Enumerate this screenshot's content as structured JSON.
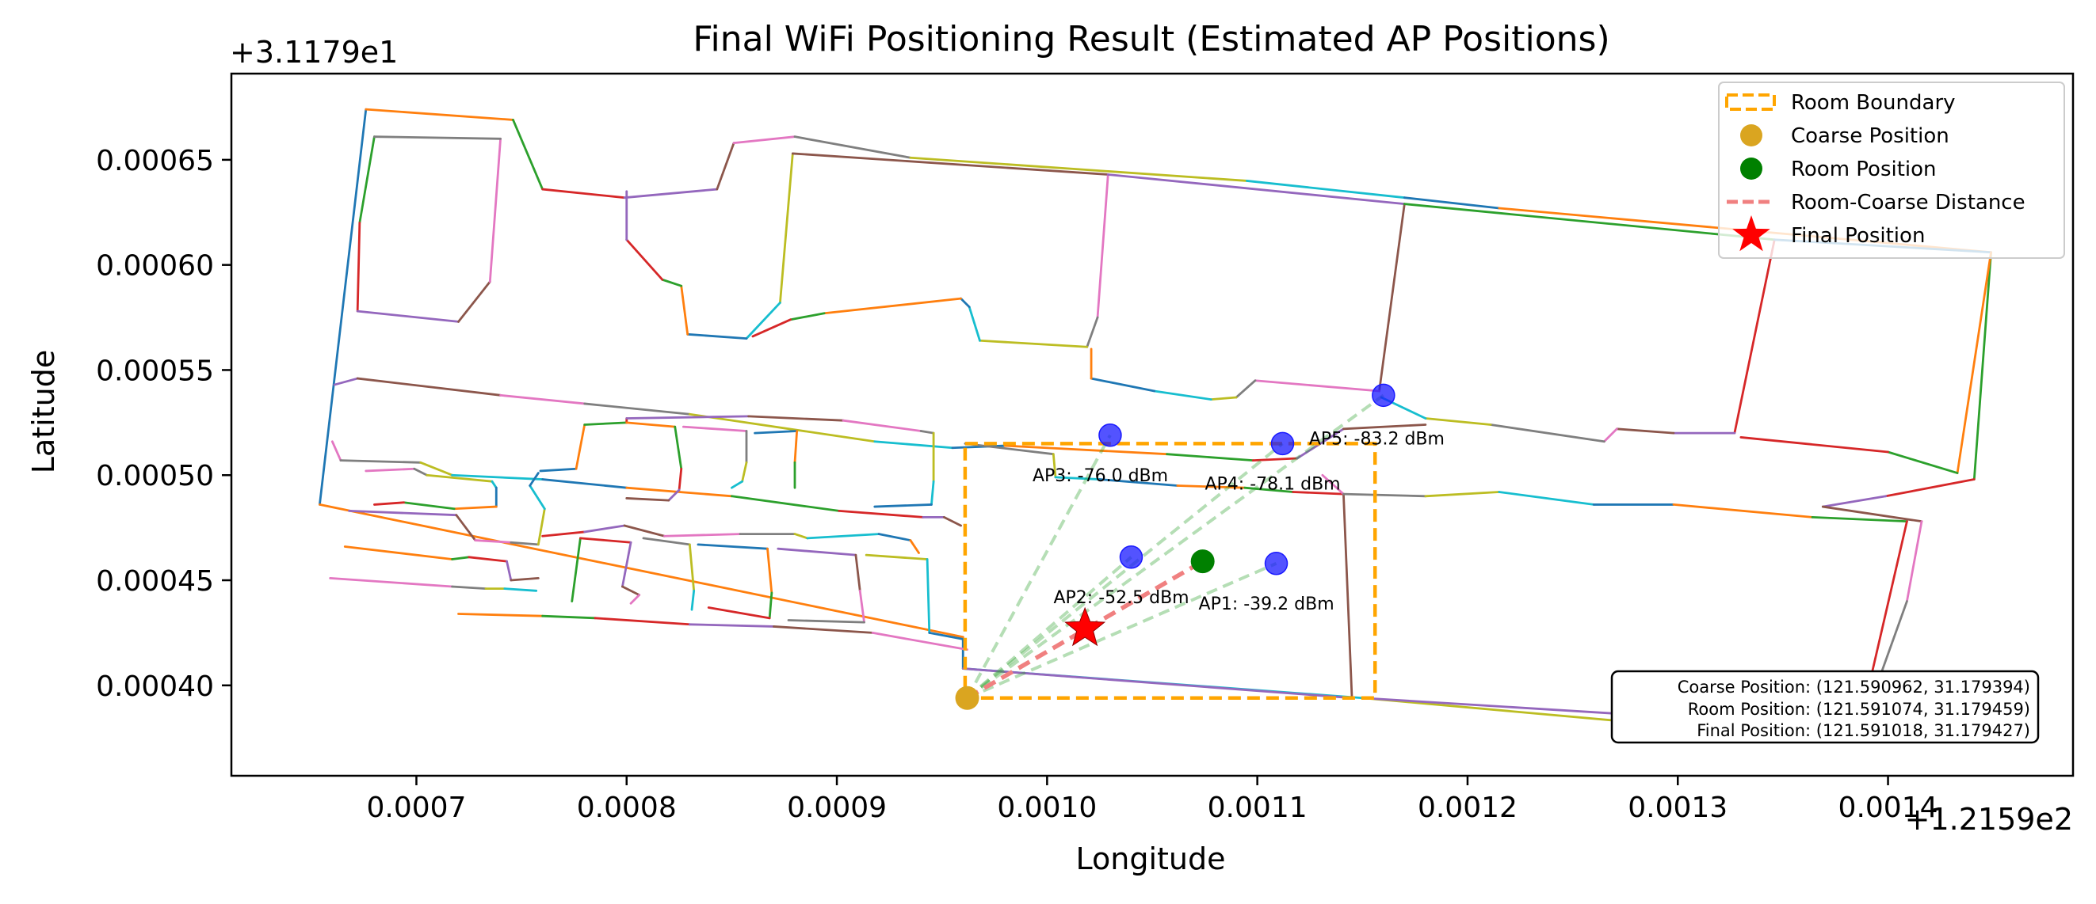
{
  "chart_data": {
    "type": "scatter",
    "title": "Final WiFi Positioning Result (Estimated AP Positions)",
    "xlabel": "Longitude",
    "ylabel": "Latitude",
    "x_offset_label": "+1.2159e2",
    "y_offset_label": "+3.1179e1",
    "xlim": [
      0.000612,
      0.001488
    ],
    "ylim": [
      0.000357,
      0.000691
    ],
    "x_ticks": [
      0.0007,
      0.0008,
      0.0009,
      0.001,
      0.0011,
      0.0012,
      0.0013,
      0.0014
    ],
    "x_tick_labels": [
      "0.0007",
      "0.0008",
      "0.0009",
      "0.0010",
      "0.0011",
      "0.0012",
      "0.0013",
      "0.0014"
    ],
    "y_ticks": [
      0.0004,
      0.00045,
      0.0005,
      0.00055,
      0.0006,
      0.00065
    ],
    "y_tick_labels": [
      "0.00040",
      "0.00045",
      "0.00050",
      "0.00055",
      "0.00060",
      "0.00065"
    ],
    "grid": false,
    "legend_position": "top-right",
    "legend": [
      {
        "label": "Room Boundary",
        "marker": "dashed-rect",
        "color": "#FFA500"
      },
      {
        "label": "Coarse Position",
        "marker": "circle",
        "color": "#DAA520"
      },
      {
        "label": "Room Position",
        "marker": "circle",
        "color": "#008000"
      },
      {
        "label": "Room-Coarse Distance",
        "marker": "dashed-line",
        "color": "#F08080"
      },
      {
        "label": "Final Position",
        "marker": "star",
        "color": "#FF0000"
      }
    ],
    "floorplan_colors": [
      "#1f77b4",
      "#ff7f0e",
      "#2ca02c",
      "#d62728",
      "#9467bd",
      "#8c564b",
      "#e377c2",
      "#7f7f7f",
      "#bcbd22",
      "#17becf"
    ],
    "floorplan_polygons": [
      [
        [
          0.000654,
          0.000486
        ],
        [
          0.000676,
          0.000674
        ],
        [
          0.000746,
          0.000669
        ],
        [
          0.00076,
          0.000636
        ],
        [
          0.000799,
          0.000632
        ],
        [
          0.000843,
          0.000636
        ],
        [
          0.000851,
          0.000658
        ],
        [
          0.00088,
          0.000661
        ],
        [
          0.000935,
          0.000651
        ],
        [
          0.001095,
          0.00064
        ],
        [
          0.00117,
          0.000632
        ],
        [
          0.001215,
          0.000627
        ],
        [
          0.001449,
          0.000606
        ],
        [
          0.001441,
          0.000498
        ],
        [
          0.001399,
          0.00049
        ],
        [
          0.001369,
          0.000485
        ],
        [
          0.001416,
          0.000478
        ],
        [
          0.001409,
          0.00044
        ],
        [
          0.001385,
          0.000373
        ],
        [
          0.00115,
          0.000394
        ],
        [
          0.00096,
          0.000408
        ],
        [
          0.00096,
          0.000423
        ],
        [
          0.000654,
          0.000486
        ]
      ],
      [
        [
          0.00068,
          0.000661
        ],
        [
          0.000673,
          0.00062
        ],
        [
          0.000672,
          0.000578
        ],
        [
          0.00072,
          0.000573
        ],
        [
          0.000735,
          0.000592
        ],
        [
          0.00074,
          0.00066
        ],
        [
          0.00068,
          0.000661
        ]
      ],
      [
        [
          0.000879,
          0.000653
        ],
        [
          0.000873,
          0.000582
        ],
        [
          0.000857,
          0.000565
        ],
        [
          0.000829,
          0.000567
        ],
        [
          0.000826,
          0.00059
        ],
        [
          0.000817,
          0.000593
        ],
        [
          0.0008,
          0.000612
        ],
        [
          0.0008,
          0.000635
        ]
      ],
      [
        [
          0.000879,
          0.000653
        ],
        [
          0.001029,
          0.000643
        ],
        [
          0.001024,
          0.000575
        ],
        [
          0.001019,
          0.000561
        ],
        [
          0.000968,
          0.000564
        ],
        [
          0.000963,
          0.00058
        ],
        [
          0.000959,
          0.000584
        ],
        [
          0.000894,
          0.000577
        ],
        [
          0.000878,
          0.000574
        ],
        [
          0.00086,
          0.000566
        ]
      ],
      [
        [
          0.001029,
          0.000643
        ],
        [
          0.00117,
          0.000629
        ],
        [
          0.001158,
          0.00054
        ],
        [
          0.001099,
          0.000545
        ],
        [
          0.00109,
          0.000537
        ],
        [
          0.001078,
          0.000536
        ],
        [
          0.001051,
          0.00054
        ],
        [
          0.001021,
          0.000546
        ],
        [
          0.001021,
          0.00056
        ]
      ],
      [
        [
          0.00117,
          0.000629
        ],
        [
          0.001346,
          0.000612
        ],
        [
          0.001327,
          0.00052
        ],
        [
          0.001298,
          0.00052
        ],
        [
          0.001271,
          0.000522
        ],
        [
          0.001265,
          0.000516
        ],
        [
          0.001211,
          0.000524
        ],
        [
          0.00118,
          0.000527
        ],
        [
          0.001159,
          0.000537
        ]
      ],
      [
        [
          0.001346,
          0.000612
        ],
        [
          0.001449,
          0.000606
        ],
        [
          0.001433,
          0.000501
        ],
        [
          0.0014,
          0.000511
        ],
        [
          0.00133,
          0.000518
        ]
      ],
      [
        [
          0.000661,
          0.000543
        ],
        [
          0.000672,
          0.000546
        ],
        [
          0.00074,
          0.000538
        ],
        [
          0.00078,
          0.000534
        ],
        [
          0.00083,
          0.000529
        ],
        [
          0.000918,
          0.000516
        ],
        [
          0.000955,
          0.000513
        ],
        [
          0.00098,
          0.000514
        ],
        [
          0.001057,
          0.00051
        ],
        [
          0.001098,
          0.000507
        ],
        [
          0.001119,
          0.000508
        ],
        [
          0.001141,
          0.000522
        ],
        [
          0.00118,
          0.000524
        ]
      ],
      [
        [
          0.00066,
          0.000516
        ],
        [
          0.000664,
          0.000507
        ],
        [
          0.000702,
          0.000506
        ],
        [
          0.000717,
          0.0005
        ],
        [
          0.00076,
          0.000498
        ],
        [
          0.0008,
          0.000494
        ],
        [
          0.00085,
          0.00049
        ],
        [
          0.000901,
          0.000483
        ],
        [
          0.000941,
          0.00048
        ],
        [
          0.000951,
          0.00048
        ],
        [
          0.000959,
          0.000476
        ]
      ],
      [
        [
          0.000676,
          0.000502
        ],
        [
          0.000699,
          0.000503
        ],
        [
          0.000705,
          0.0005
        ],
        [
          0.000736,
          0.000497
        ],
        [
          0.000738,
          0.000494
        ],
        [
          0.000738,
          0.000485
        ],
        [
          0.000718,
          0.000484
        ],
        [
          0.000694,
          0.000487
        ],
        [
          0.00068,
          0.000486
        ]
      ],
      [
        [
          0.000668,
          0.000483
        ],
        [
          0.000719,
          0.000481
        ],
        [
          0.000728,
          0.000469
        ],
        [
          0.000745,
          0.000468
        ],
        [
          0.000758,
          0.000467
        ],
        [
          0.000761,
          0.000484
        ],
        [
          0.000754,
          0.000495
        ],
        [
          0.000758,
          0.000501
        ]
      ],
      [
        [
          0.000666,
          0.000466
        ],
        [
          0.000717,
          0.00046
        ],
        [
          0.000725,
          0.000461
        ],
        [
          0.000743,
          0.000459
        ],
        [
          0.000745,
          0.00045
        ],
        [
          0.000758,
          0.000451
        ]
      ],
      [
        [
          0.000659,
          0.000451
        ],
        [
          0.000717,
          0.000447
        ],
        [
          0.000733,
          0.000446
        ],
        [
          0.000742,
          0.000446
        ],
        [
          0.000757,
          0.000445
        ]
      ],
      [
        [
          0.000759,
          0.000502
        ],
        [
          0.000776,
          0.000503
        ],
        [
          0.00078,
          0.000524
        ],
        [
          0.0008,
          0.000525
        ],
        [
          0.0008,
          0.000527
        ],
        [
          0.000858,
          0.000528
        ],
        [
          0.000903,
          0.000526
        ],
        [
          0.00094,
          0.000521
        ],
        [
          0.000946,
          0.00052
        ],
        [
          0.000946,
          0.000497
        ],
        [
          0.000945,
          0.000486
        ],
        [
          0.000918,
          0.000485
        ]
      ],
      [
        [
          0.0008,
          0.000525
        ],
        [
          0.000823,
          0.000523
        ],
        [
          0.000826,
          0.000503
        ],
        [
          0.000825,
          0.000493
        ],
        [
          0.00082,
          0.000488
        ],
        [
          0.0008,
          0.000489
        ]
      ],
      [
        [
          0.000827,
          0.000523
        ],
        [
          0.000857,
          0.000521
        ],
        [
          0.000857,
          0.000506
        ],
        [
          0.000855,
          0.000497
        ],
        [
          0.00085,
          0.000494
        ]
      ],
      [
        [
          0.000861,
          0.00052
        ],
        [
          0.000881,
          0.000521
        ],
        [
          0.00088,
          0.000506
        ],
        [
          0.00088,
          0.000494
        ]
      ],
      [
        [
          0.00076,
          0.000471
        ],
        [
          0.00078,
          0.000473
        ],
        [
          0.000799,
          0.000476
        ],
        [
          0.000818,
          0.000471
        ],
        [
          0.000854,
          0.000472
        ],
        [
          0.00088,
          0.000472
        ],
        [
          0.000886,
          0.00047
        ],
        [
          0.00092,
          0.000472
        ],
        [
          0.000935,
          0.000469
        ],
        [
          0.000939,
          0.000463
        ]
      ],
      [
        [
          0.000774,
          0.00044
        ],
        [
          0.000778,
          0.00047
        ],
        [
          0.000802,
          0.000468
        ],
        [
          0.000798,
          0.000447
        ],
        [
          0.000806,
          0.000443
        ],
        [
          0.000802,
          0.000439
        ]
      ],
      [
        [
          0.000808,
          0.00047
        ],
        [
          0.00083,
          0.000467
        ],
        [
          0.000832,
          0.000445
        ],
        [
          0.000831,
          0.000436
        ]
      ],
      [
        [
          0.000834,
          0.000467
        ],
        [
          0.000867,
          0.000465
        ],
        [
          0.000869,
          0.000444
        ],
        [
          0.000868,
          0.000432
        ],
        [
          0.000839,
          0.000437
        ]
      ],
      [
        [
          0.000872,
          0.000465
        ],
        [
          0.000909,
          0.000462
        ],
        [
          0.000911,
          0.000445
        ],
        [
          0.000913,
          0.00043
        ],
        [
          0.000877,
          0.000431
        ]
      ],
      [
        [
          0.000914,
          0.000462
        ],
        [
          0.000943,
          0.00046
        ],
        [
          0.000944,
          0.000425
        ],
        [
          0.00096,
          0.000422
        ]
      ],
      [
        [
          0.00072,
          0.000434
        ],
        [
          0.00076,
          0.000433
        ],
        [
          0.000785,
          0.000432
        ],
        [
          0.00083,
          0.000429
        ],
        [
          0.00087,
          0.000428
        ],
        [
          0.000917,
          0.000425
        ],
        [
          0.000962,
          0.000417
        ]
      ],
      [
        [
          0.000961,
          0.000515
        ],
        [
          0.001003,
          0.00051
        ],
        [
          0.001004,
          0.000499
        ],
        [
          0.001025,
          0.000498
        ],
        [
          0.001062,
          0.000495
        ],
        [
          0.001094,
          0.000494
        ],
        [
          0.001117,
          0.000492
        ],
        [
          0.001141,
          0.000491
        ]
      ],
      [
        [
          0.00096,
          0.000408
        ],
        [
          0.001145,
          0.000394
        ],
        [
          0.001141,
          0.000491
        ],
        [
          0.001131,
          0.0005
        ]
      ],
      [
        [
          0.001141,
          0.000491
        ],
        [
          0.00118,
          0.00049
        ],
        [
          0.001215,
          0.000492
        ],
        [
          0.00126,
          0.000486
        ],
        [
          0.001298,
          0.000486
        ],
        [
          0.001364,
          0.00048
        ],
        [
          0.001409,
          0.000478
        ],
        [
          0.001385,
          0.000374
        ]
      ],
      [
        [
          0.00115,
          0.000394
        ],
        [
          0.001345,
          0.000382
        ],
        [
          0.001384,
          0.000374
        ]
      ]
    ],
    "room_boundary": {
      "x": [
        0.000961,
        0.001156
      ],
      "y": [
        0.000394,
        0.000515
      ]
    },
    "coarse_position": {
      "x": 0.000962,
      "y": 0.000394
    },
    "room_position": {
      "x": 0.001074,
      "y": 0.000459
    },
    "final_position": {
      "x": 0.001018,
      "y": 0.000427
    },
    "access_points": [
      {
        "label": "AP1: -39.2 dBm",
        "x": 0.001109,
        "y": 0.000458,
        "label_offset": "below"
      },
      {
        "label": "AP2: -52.5 dBm",
        "x": 0.00104,
        "y": 0.000461,
        "label_offset": "below"
      },
      {
        "label": "AP3: -76.0 dBm",
        "x": 0.00103,
        "y": 0.000519,
        "label_offset": "below"
      },
      {
        "label": "AP4: -78.1 dBm",
        "x": 0.001112,
        "y": 0.000515,
        "label_offset": "below"
      },
      {
        "label": "AP5: -83.2 dBm",
        "x": 0.00116,
        "y": 0.000538,
        "label_offset": "right"
      }
    ],
    "info_box": [
      "Coarse Position: (121.590962, 31.179394)",
      "Room Position: (121.591074, 31.179459)",
      "Final Position: (121.591018, 31.179427)"
    ]
  }
}
